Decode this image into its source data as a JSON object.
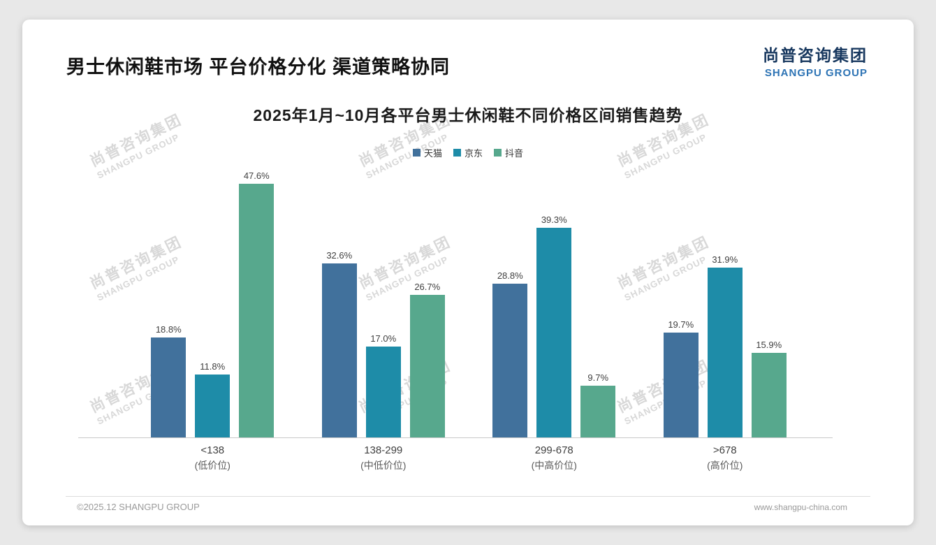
{
  "page": {
    "header_title": "男士休闲鞋市场 平台价格分化 渠道策略协同",
    "logo": {
      "cn": "尚普咨询集团",
      "en": "SHANGPU GROUP"
    },
    "watermark": {
      "cn": "尚普咨询集团",
      "en": "SHANGPU GROUP"
    },
    "footer": {
      "copyright": "©2025.12 SHANGPU GROUP",
      "website": "www.shangpu-china.com"
    }
  },
  "chart_data": {
    "type": "bar",
    "title": "2025年1月~10月各平台男士休闲鞋不同价格区间销售趋势",
    "unit": "%",
    "ylim": [
      0,
      50
    ],
    "grid": false,
    "legend_position": "top",
    "categories": [
      {
        "label": "<138",
        "sub": "(低价位)"
      },
      {
        "label": "138-299",
        "sub": "(中低价位)"
      },
      {
        "label": "299-678",
        "sub": "(中高价位)"
      },
      {
        "label": ">678",
        "sub": "(高价位)"
      }
    ],
    "series": [
      {
        "name": "天猫",
        "color": "#41719c",
        "values": [
          18.8,
          32.6,
          28.8,
          19.7
        ]
      },
      {
        "name": "京东",
        "color": "#1e8ca8",
        "values": [
          11.8,
          17.0,
          39.3,
          31.9
        ]
      },
      {
        "name": "抖音",
        "color": "#57a88d",
        "values": [
          47.6,
          26.7,
          9.7,
          15.9
        ]
      }
    ]
  }
}
